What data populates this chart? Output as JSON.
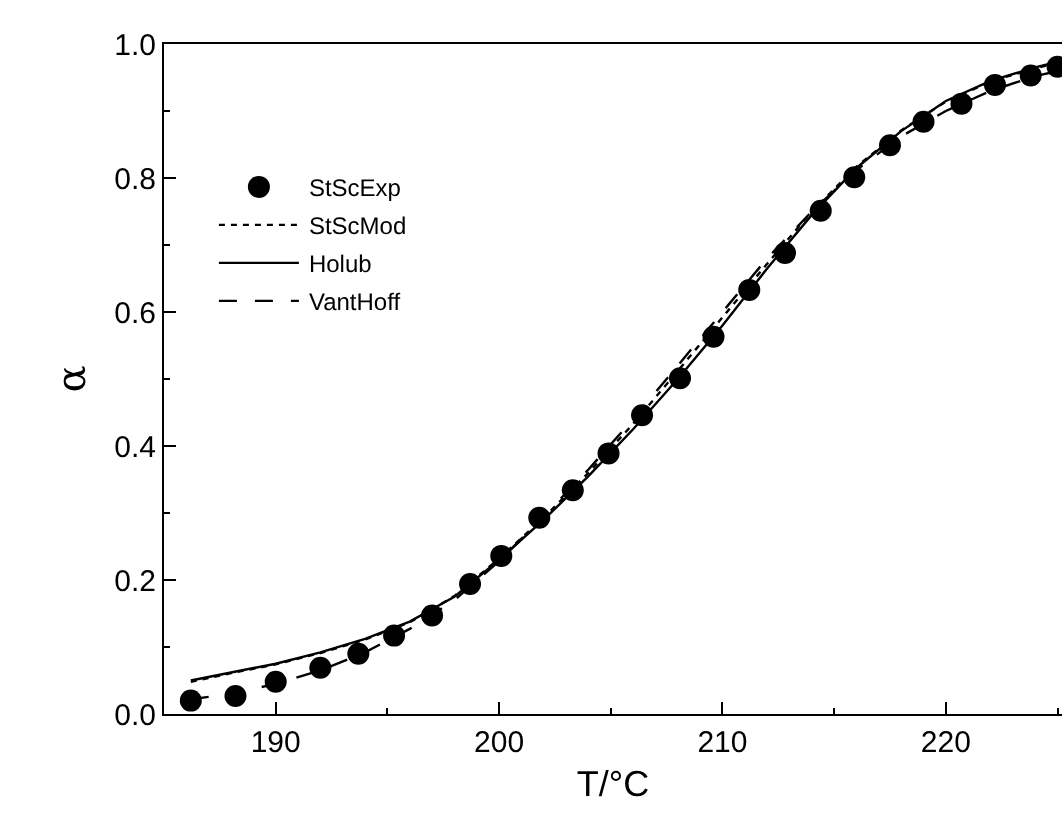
{
  "chart_data": {
    "type": "line",
    "xlabel": "T/°C",
    "ylabel": "α",
    "xlim": [
      185,
      225.2
    ],
    "xticks": [
      190,
      200,
      210,
      220
    ],
    "ylim": [
      0,
      1
    ],
    "yticks": [
      {
        "value": 0,
        "label": "0.0"
      },
      {
        "value": 0.2,
        "label": "0.2"
      },
      {
        "value": 0.4,
        "label": "0.4"
      },
      {
        "value": 0.6,
        "label": "0.6"
      },
      {
        "value": 0.8,
        "label": "0.8"
      },
      {
        "value": 1,
        "label": "1.0"
      }
    ],
    "grid": false,
    "legend": "top left",
    "series": [
      {
        "name": "StScExp",
        "type": "scatter",
        "marker": "circle",
        "color": "#000000",
        "x": [
          186.2,
          188.2,
          190.0,
          192.0,
          193.7,
          195.3,
          197.0,
          198.7,
          200.1,
          201.8,
          203.3,
          204.9,
          206.4,
          208.1,
          209.6,
          211.2,
          212.8,
          214.4,
          215.9,
          217.5,
          219.0,
          220.7,
          222.2,
          223.8,
          225.0
        ],
        "values": [
          0.02,
          0.027,
          0.048,
          0.069,
          0.09,
          0.117,
          0.147,
          0.194,
          0.236,
          0.293,
          0.334,
          0.389,
          0.446,
          0.501,
          0.563,
          0.633,
          0.688,
          0.751,
          0.801,
          0.849,
          0.884,
          0.911,
          0.939,
          0.953,
          0.966
        ]
      },
      {
        "name": "StScMod",
        "line_style": "dotted",
        "color": "#000000",
        "x": [
          186.2,
          188,
          190,
          192,
          194,
          196,
          198,
          200,
          202,
          204,
          206,
          208,
          210,
          212,
          214,
          216,
          218,
          220,
          222,
          224,
          225.2
        ],
        "values": [
          0.048,
          0.061,
          0.074,
          0.091,
          0.111,
          0.137,
          0.176,
          0.232,
          0.293,
          0.36,
          0.433,
          0.512,
          0.592,
          0.672,
          0.75,
          0.817,
          0.871,
          0.914,
          0.944,
          0.964,
          0.973
        ]
      },
      {
        "name": "Holub",
        "line_style": "solid",
        "color": "#000000",
        "x": [
          186.2,
          188,
          190,
          192,
          194,
          196,
          198,
          200,
          202,
          204,
          206,
          208,
          210,
          212,
          214,
          216,
          218,
          220,
          222,
          224,
          225.2
        ],
        "values": [
          0.05,
          0.062,
          0.075,
          0.092,
          0.112,
          0.138,
          0.175,
          0.23,
          0.29,
          0.355,
          0.425,
          0.5,
          0.58,
          0.665,
          0.745,
          0.815,
          0.87,
          0.915,
          0.945,
          0.965,
          0.975
        ]
      },
      {
        "name": "VantHoff",
        "line_style": "dashed",
        "color": "#000000",
        "x": [
          186.2,
          188,
          190,
          192,
          194,
          196,
          198,
          200,
          202,
          204,
          206,
          208,
          210,
          212,
          214,
          216,
          218,
          220,
          222,
          224,
          225.2
        ],
        "values": [
          0.022,
          0.03,
          0.045,
          0.065,
          0.092,
          0.127,
          0.17,
          0.228,
          0.295,
          0.365,
          0.44,
          0.52,
          0.6,
          0.68,
          0.75,
          0.812,
          0.862,
          0.9,
          0.93,
          0.952,
          0.961
        ]
      }
    ]
  }
}
